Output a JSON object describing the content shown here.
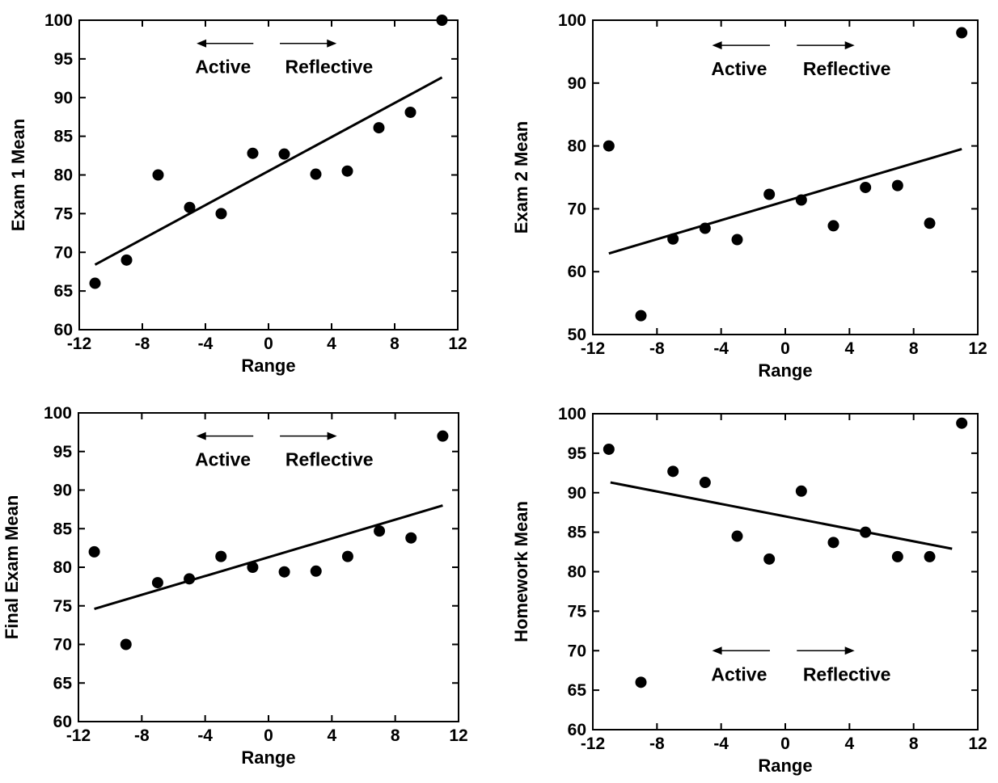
{
  "chart_data": [
    {
      "type": "scatter",
      "xlabel": "Range",
      "ylabel": "Exam 1 Mean",
      "xlim": [
        -12,
        12
      ],
      "ylim": [
        60,
        100
      ],
      "xticks": [
        -12,
        -8,
        -4,
        0,
        4,
        8,
        12
      ],
      "yticks": [
        60,
        65,
        70,
        75,
        80,
        85,
        90,
        95,
        100
      ],
      "points": [
        {
          "x": -11,
          "y": 66
        },
        {
          "x": -9,
          "y": 69
        },
        {
          "x": -7,
          "y": 80
        },
        {
          "x": -5,
          "y": 75.8
        },
        {
          "x": -3,
          "y": 75
        },
        {
          "x": -1,
          "y": 82.8
        },
        {
          "x": 1,
          "y": 82.7
        },
        {
          "x": 3,
          "y": 80.1
        },
        {
          "x": 5,
          "y": 80.5
        },
        {
          "x": 7,
          "y": 86.1
        },
        {
          "x": 9,
          "y": 88.1
        },
        {
          "x": 11,
          "y": 100
        }
      ],
      "fit_line": [
        {
          "x": -11,
          "y": 68.4
        },
        {
          "x": 11,
          "y": 92.6
        }
      ],
      "annotations": {
        "left": "Active",
        "right": "Reflective",
        "y": 97
      },
      "grid": false
    },
    {
      "type": "scatter",
      "xlabel": "Range",
      "ylabel": "Exam 2 Mean",
      "xlim": [
        -12,
        12
      ],
      "ylim": [
        50,
        100
      ],
      "xticks": [
        -12,
        -8,
        -4,
        0,
        4,
        8,
        12
      ],
      "yticks": [
        50,
        60,
        70,
        80,
        90,
        100
      ],
      "points": [
        {
          "x": -11,
          "y": 80
        },
        {
          "x": -9,
          "y": 53
        },
        {
          "x": -7,
          "y": 65.2
        },
        {
          "x": -5,
          "y": 66.9
        },
        {
          "x": -3,
          "y": 65.1
        },
        {
          "x": -1,
          "y": 72.3
        },
        {
          "x": 1,
          "y": 71.4
        },
        {
          "x": 3,
          "y": 67.3
        },
        {
          "x": 5,
          "y": 73.4
        },
        {
          "x": 7,
          "y": 73.7
        },
        {
          "x": 9,
          "y": 67.7
        },
        {
          "x": 11,
          "y": 98
        }
      ],
      "fit_line": [
        {
          "x": -11,
          "y": 62.9
        },
        {
          "x": 11,
          "y": 79.5
        }
      ],
      "annotations": {
        "left": "Active",
        "right": "Reflective",
        "y": 96
      },
      "grid": false
    },
    {
      "type": "scatter",
      "xlabel": "Range",
      "ylabel": "Final Exam Mean",
      "xlim": [
        -12,
        12
      ],
      "ylim": [
        60,
        100
      ],
      "xticks": [
        -12,
        -8,
        -4,
        0,
        4,
        8,
        12
      ],
      "yticks": [
        60,
        65,
        70,
        75,
        80,
        85,
        90,
        95,
        100
      ],
      "points": [
        {
          "x": -11,
          "y": 82
        },
        {
          "x": -9,
          "y": 70
        },
        {
          "x": -7,
          "y": 78
        },
        {
          "x": -5,
          "y": 78.5
        },
        {
          "x": -3,
          "y": 81.4
        },
        {
          "x": -1,
          "y": 80
        },
        {
          "x": 1,
          "y": 79.4
        },
        {
          "x": 3,
          "y": 79.5
        },
        {
          "x": 5,
          "y": 81.4
        },
        {
          "x": 7,
          "y": 84.7
        },
        {
          "x": 9,
          "y": 83.8
        },
        {
          "x": 11,
          "y": 97
        }
      ],
      "fit_line": [
        {
          "x": -11,
          "y": 74.6
        },
        {
          "x": 11,
          "y": 88
        }
      ],
      "annotations": {
        "left": "Active",
        "right": "Reflective",
        "y": 97
      },
      "grid": false
    },
    {
      "type": "scatter",
      "xlabel": "Range",
      "ylabel": "Homework Mean",
      "xlim": [
        -12,
        12
      ],
      "ylim": [
        60,
        100
      ],
      "xticks": [
        -12,
        -8,
        -4,
        0,
        4,
        8,
        12
      ],
      "yticks": [
        60,
        65,
        70,
        75,
        80,
        85,
        90,
        95,
        100
      ],
      "points": [
        {
          "x": -11,
          "y": 95.5
        },
        {
          "x": -9,
          "y": 66
        },
        {
          "x": -7,
          "y": 92.7
        },
        {
          "x": -5,
          "y": 91.3
        },
        {
          "x": -3,
          "y": 84.5
        },
        {
          "x": -1,
          "y": 81.6
        },
        {
          "x": 1,
          "y": 90.2
        },
        {
          "x": 3,
          "y": 83.7
        },
        {
          "x": 5,
          "y": 85
        },
        {
          "x": 7,
          "y": 81.9
        },
        {
          "x": 9,
          "y": 81.9
        },
        {
          "x": 11,
          "y": 98.8
        }
      ],
      "fit_line": [
        {
          "x": -10.9,
          "y": 91.3
        },
        {
          "x": 10.4,
          "y": 82.9
        }
      ],
      "annotations": {
        "left": "Active",
        "right": "Reflective",
        "y": 70
      },
      "grid": false
    }
  ]
}
